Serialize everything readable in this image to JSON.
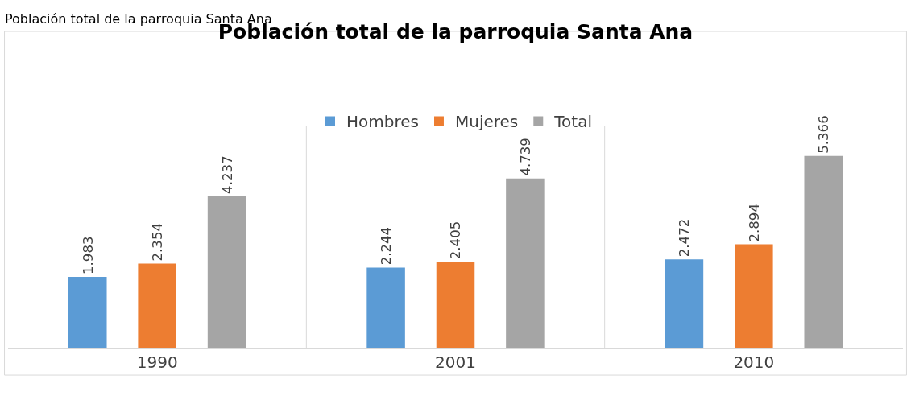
{
  "chart_data": {
    "type": "bar",
    "title": "Población total de la parroquia Santa Ana",
    "annotations": [
      "Población total de la parroquia Santa Ana"
    ],
    "categories": [
      "1990",
      "2001",
      "2010"
    ],
    "series": [
      {
        "name": "Hombres",
        "color": "#5b9bd5",
        "values": [
          1983,
          2244,
          2472
        ],
        "value_labels": [
          "1.983",
          "2.244",
          "2.472"
        ]
      },
      {
        "name": "Mujeres",
        "color": "#ed7d31",
        "values": [
          2354,
          2405,
          2894
        ],
        "value_labels": [
          "2.354",
          "2.405",
          "2.894"
        ]
      },
      {
        "name": "Total",
        "color": "#a5a5a5",
        "values": [
          4237,
          4739,
          5366
        ],
        "value_labels": [
          "4.237",
          "4.739",
          "5.366"
        ]
      }
    ],
    "legend": "top",
    "grid": "x"
  }
}
